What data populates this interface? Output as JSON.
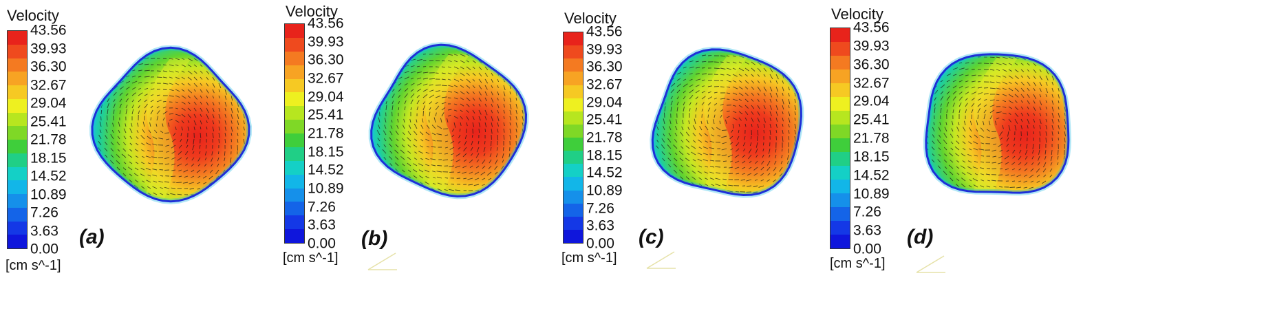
{
  "legend": {
    "title": "Velocity",
    "unit": "[cm s^-1]",
    "ticks": [
      "43.56",
      "39.93",
      "36.30",
      "32.67",
      "29.04",
      "25.41",
      "21.78",
      "18.15",
      "14.52",
      "10.89",
      "7.26",
      "3.63",
      "0.00"
    ],
    "colors": [
      "#e8231b",
      "#ef4a1e",
      "#f47a21",
      "#f7a323",
      "#f6c923",
      "#eef020",
      "#b7e61f",
      "#7fd826",
      "#3fce3b",
      "#20cf86",
      "#14d0c6",
      "#12b6e8",
      "#1590ea",
      "#1464e8",
      "#1438e6",
      "#0f16dc"
    ]
  },
  "panels": [
    {
      "label": "(a)"
    },
    {
      "label": "(b)"
    },
    {
      "label": "(c)"
    },
    {
      "label": "(d)"
    }
  ]
}
